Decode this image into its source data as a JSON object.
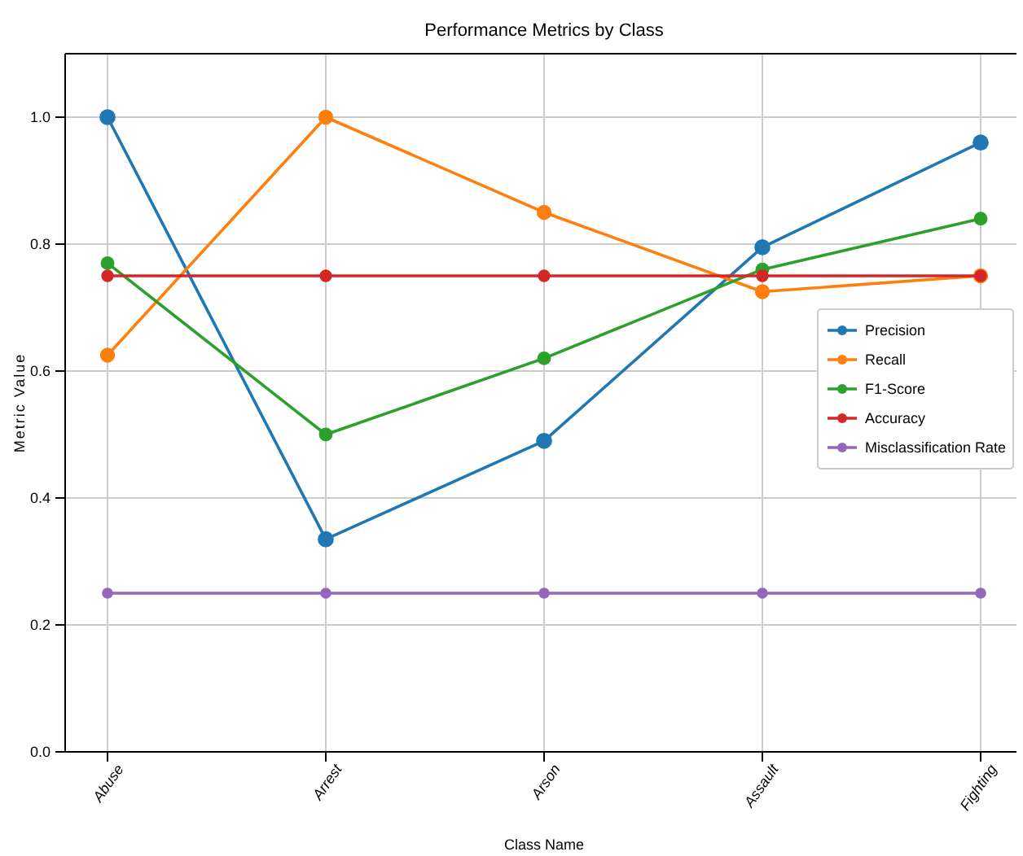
{
  "chart_data": {
    "type": "line",
    "title": "Performance Metrics by Class",
    "xlabel": "Class Name",
    "ylabel": "Metric Value",
    "categories": [
      "Abuse",
      "Arrest",
      "Arson",
      "Assault",
      "Fighting"
    ],
    "series": [
      {
        "name": "Precision",
        "color": "#1f77b4",
        "values": [
          1.0,
          0.335,
          0.49,
          0.795,
          0.96
        ]
      },
      {
        "name": "Recall",
        "color": "#ff7f0e",
        "values": [
          0.625,
          1.0,
          0.85,
          0.725,
          0.75
        ]
      },
      {
        "name": "F1-Score",
        "color": "#2ca02c",
        "values": [
          0.77,
          0.5,
          0.62,
          0.76,
          0.84
        ]
      },
      {
        "name": "Accuracy",
        "color": "#d62728",
        "values": [
          0.75,
          0.75,
          0.75,
          0.75,
          0.75
        ]
      },
      {
        "name": "Misclassification Rate",
        "color": "#9467bd",
        "values": [
          0.25,
          0.25,
          0.25,
          0.25,
          0.25
        ]
      }
    ],
    "ylim": [
      0,
      1.1
    ],
    "yticks": [
      {
        "value": 0,
        "label": "0.0"
      },
      0.2,
      0.4,
      0.6,
      0.8,
      {
        "value": 1,
        "label": "1.0"
      }
    ],
    "grid": true,
    "legend": "right",
    "marker": "circle",
    "line_style": "solid"
  }
}
